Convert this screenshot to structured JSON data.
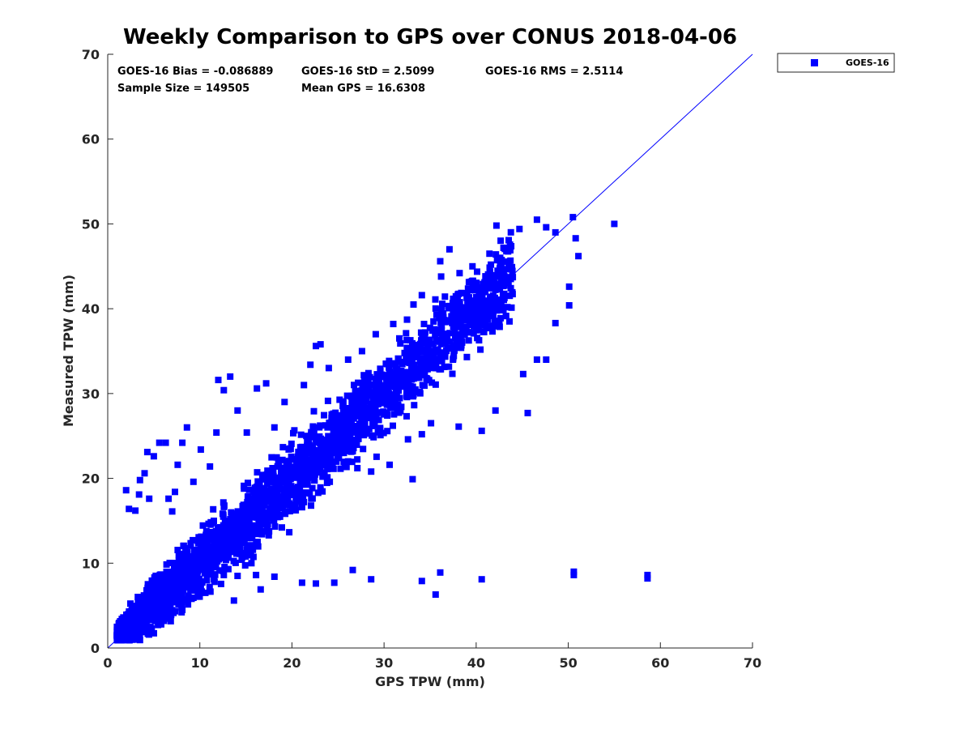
{
  "chart_data": {
    "type": "scatter",
    "title": "Weekly Comparison to GPS over CONUS 2018-04-06",
    "xlabel": "GPS TPW (mm)",
    "ylabel": "Measured TPW (mm)",
    "xlim": [
      0,
      70
    ],
    "ylim": [
      0,
      70
    ],
    "xticks": [
      "0",
      "10",
      "20",
      "30",
      "40",
      "50",
      "60",
      "70"
    ],
    "yticks": [
      "0",
      "10",
      "20",
      "30",
      "40",
      "50",
      "60",
      "70"
    ],
    "grid": false,
    "legend": {
      "position": "outside-top-right",
      "entries": [
        "GOES-16"
      ]
    },
    "stats": {
      "bias": "GOES-16 Bias = -0.086889",
      "std": "GOES-16 StD = 2.5099",
      "rms": "GOES-16 RMS = 2.5114",
      "sample_size": "Sample Size = 149505",
      "mean_gps": "Mean GPS = 16.6308"
    },
    "reference_line": {
      "name": "one-to-one",
      "from": [
        0,
        0
      ],
      "to": [
        70,
        70
      ]
    },
    "series": [
      {
        "name": "GOES-16",
        "color": "#0000ff",
        "marker": "square",
        "bulk_trend": [
          {
            "x": 1,
            "spread": 1.6
          },
          {
            "x": 5,
            "spread": 2.6
          },
          {
            "x": 10,
            "spread": 3.2
          },
          {
            "x": 15,
            "spread": 3.6
          },
          {
            "x": 20,
            "spread": 3.7
          },
          {
            "x": 25,
            "spread": 3.6
          },
          {
            "x": 30,
            "spread": 3.8
          },
          {
            "x": 35,
            "spread": 4.0
          },
          {
            "x": 40,
            "spread": 4.2
          },
          {
            "x": 44,
            "spread": 4.2
          }
        ],
        "outliers": [
          [
            1.1,
            1.9
          ],
          [
            2,
            18.6
          ],
          [
            2.3,
            16.4
          ],
          [
            3,
            16.2
          ],
          [
            3.4,
            18.1
          ],
          [
            3.5,
            19.8
          ],
          [
            4,
            20.6
          ],
          [
            4.5,
            17.6
          ],
          [
            4.3,
            23.1
          ],
          [
            5,
            22.6
          ],
          [
            5.6,
            24.2
          ],
          [
            6.3,
            24.2
          ],
          [
            6.6,
            17.6
          ],
          [
            7,
            16.1
          ],
          [
            7.3,
            18.4
          ],
          [
            7.6,
            21.6
          ],
          [
            8.1,
            24.2
          ],
          [
            8.6,
            26
          ],
          [
            9.3,
            19.6
          ],
          [
            10.1,
            23.4
          ],
          [
            11.1,
            21.4
          ],
          [
            11.8,
            25.4
          ],
          [
            12,
            31.6
          ],
          [
            12.6,
            30.4
          ],
          [
            13.3,
            32
          ],
          [
            14.1,
            28
          ],
          [
            15.1,
            25.4
          ],
          [
            16.2,
            30.6
          ],
          [
            17.2,
            31.2
          ],
          [
            18.1,
            26
          ],
          [
            19.2,
            29
          ],
          [
            21.3,
            31
          ],
          [
            22,
            33.4
          ],
          [
            22.6,
            35.6
          ],
          [
            23.1,
            35.8
          ],
          [
            24,
            33
          ],
          [
            26.1,
            34
          ],
          [
            27.6,
            35
          ],
          [
            29.1,
            37
          ],
          [
            31,
            38.2
          ],
          [
            33.2,
            40.5
          ],
          [
            34.1,
            41.6
          ],
          [
            36.2,
            43.8
          ],
          [
            36.1,
            45.6
          ],
          [
            37.1,
            47
          ],
          [
            38.2,
            44.2
          ],
          [
            39.6,
            45
          ],
          [
            41.6,
            45.2
          ],
          [
            42.2,
            49.8
          ],
          [
            43.6,
            47
          ],
          [
            44.7,
            49.4
          ],
          [
            46.6,
            50.5
          ],
          [
            47.6,
            49.6
          ],
          [
            48.6,
            49
          ],
          [
            50.5,
            50.8
          ],
          [
            50.8,
            48.3
          ],
          [
            51.1,
            46.2
          ],
          [
            50.1,
            42.6
          ],
          [
            50.1,
            40.4
          ],
          [
            48.6,
            38.3
          ],
          [
            46.6,
            34
          ],
          [
            47.6,
            34
          ],
          [
            45.1,
            32.3
          ],
          [
            45.6,
            27.7
          ],
          [
            42.1,
            28
          ],
          [
            40.6,
            25.6
          ],
          [
            38.1,
            26.1
          ],
          [
            35.1,
            26.5
          ],
          [
            34.1,
            25.2
          ],
          [
            32.6,
            24.6
          ],
          [
            33.1,
            19.9
          ],
          [
            30.6,
            21.6
          ],
          [
            28.6,
            20.8
          ],
          [
            27.1,
            21.2
          ],
          [
            26.6,
            23.2
          ],
          [
            26.1,
            22
          ],
          [
            25.1,
            22.4
          ],
          [
            24.1,
            19.6
          ],
          [
            23.1,
            18.6
          ],
          [
            22.1,
            17.6
          ],
          [
            21.1,
            16.6
          ],
          [
            17.1,
            15
          ],
          [
            15.6,
            10
          ],
          [
            14.1,
            8.5
          ],
          [
            12.6,
            8.6
          ],
          [
            11.6,
            7.8
          ],
          [
            10.6,
            6.5
          ],
          [
            9.1,
            5.8
          ],
          [
            8.1,
            4.5
          ],
          [
            6.1,
            3.2
          ],
          [
            13.7,
            5.6
          ],
          [
            16.1,
            8.6
          ],
          [
            18.1,
            8.4
          ],
          [
            16.6,
            6.9
          ],
          [
            21.1,
            7.7
          ],
          [
            22.6,
            7.6
          ],
          [
            24.6,
            7.7
          ],
          [
            26.6,
            9.2
          ],
          [
            28.6,
            8.1
          ],
          [
            34.1,
            7.9
          ],
          [
            36.1,
            8.9
          ],
          [
            35.6,
            6.3
          ],
          [
            40.6,
            8.1
          ],
          [
            50.6,
            8.6
          ],
          [
            50.6,
            9.0
          ],
          [
            58.6,
            8.2
          ],
          [
            58.6,
            8.6
          ],
          [
            55,
            50
          ]
        ]
      }
    ]
  }
}
